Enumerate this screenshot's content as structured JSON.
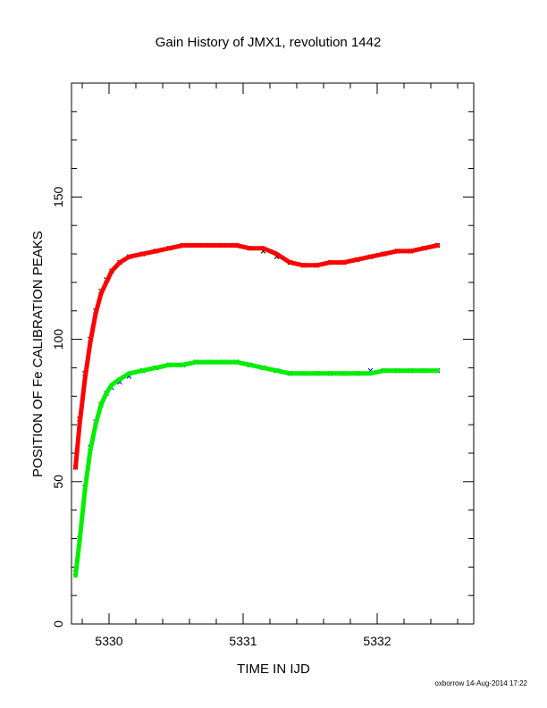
{
  "footer": "oxborrow 14-Aug-2014 17:22",
  "colors": {
    "background": "#ffffff",
    "axes": "#000000",
    "black_points": "#000000",
    "blue_points": "#0000ee",
    "red_fit": "#ff0000",
    "green_fit": "#00ee00"
  },
  "chart_data": {
    "type": "scatter",
    "title": "Gain History of JMX1, revolution 1442",
    "xlabel": "TIME IN IJD",
    "ylabel": "POSITION OF Fe CALIBRATION PEAKS",
    "xlim": [
      5329.72,
      5332.72
    ],
    "ylim": [
      0,
      190
    ],
    "xticks": [
      5330,
      5331,
      5332
    ],
    "xtick_labels": [
      "5330",
      "5331",
      "5332"
    ],
    "yticks": [
      0,
      50,
      100,
      150
    ],
    "ytick_labels": [
      "0",
      "50",
      "100",
      "150"
    ],
    "grid": false,
    "legend": "none",
    "series": [
      {
        "marker": "x",
        "color": "#000000",
        "x": [
          5329.75,
          5329.78,
          5329.82,
          5329.86,
          5329.9,
          5329.94,
          5329.98,
          5330.02,
          5330.08,
          5330.15,
          5330.25,
          5330.35,
          5330.45,
          5330.55,
          5330.65,
          5330.75,
          5330.85,
          5330.95,
          5331.05,
          5331.15,
          5331.25,
          5331.35,
          5331.45,
          5331.55,
          5331.65,
          5331.75,
          5331.85,
          5331.95,
          5332.05,
          5332.15,
          5332.25,
          5332.35,
          5332.45
        ],
        "y": [
          55,
          72,
          88,
          100,
          110,
          117,
          121,
          124,
          127,
          129,
          130,
          131,
          132,
          133,
          133,
          133,
          133,
          133,
          132,
          131,
          129,
          127,
          126,
          126,
          127,
          127,
          128,
          129,
          130,
          131,
          131,
          132,
          133
        ]
      },
      {
        "marker": "x",
        "color": "#0000ee",
        "x": [
          5329.75,
          5329.78,
          5329.82,
          5329.86,
          5329.9,
          5329.94,
          5329.98,
          5330.02,
          5330.08,
          5330.15,
          5330.25,
          5330.35,
          5330.45,
          5330.55,
          5330.65,
          5330.75,
          5330.85,
          5330.95,
          5331.05,
          5331.15,
          5331.25,
          5331.35,
          5331.45,
          5331.55,
          5331.65,
          5331.75,
          5331.85,
          5331.95,
          5332.05,
          5332.15,
          5332.25,
          5332.35,
          5332.45
        ],
        "y": [
          18,
          30,
          48,
          62,
          71,
          77,
          81,
          83,
          85,
          87,
          89,
          90,
          91,
          91,
          92,
          92,
          92,
          92,
          91,
          90,
          89,
          88,
          88,
          88,
          88,
          88,
          88,
          89,
          89,
          89,
          89,
          89,
          89
        ]
      },
      {
        "marker": "line",
        "color": "#ff0000",
        "x": [
          5329.75,
          5329.78,
          5329.82,
          5329.86,
          5329.9,
          5329.94,
          5329.98,
          5330.02,
          5330.08,
          5330.15,
          5330.25,
          5330.35,
          5330.45,
          5330.55,
          5330.65,
          5330.75,
          5330.85,
          5330.95,
          5331.05,
          5331.15,
          5331.25,
          5331.35,
          5331.45,
          5331.55,
          5331.65,
          5331.75,
          5331.85,
          5331.95,
          5332.05,
          5332.15,
          5332.25,
          5332.35,
          5332.45
        ],
        "y": [
          55,
          70,
          86,
          99,
          109,
          116,
          120,
          124,
          127,
          129,
          130,
          131,
          132,
          133,
          133,
          133,
          133,
          133,
          132,
          132,
          130,
          127,
          126,
          126,
          127,
          127,
          128,
          129,
          130,
          131,
          131,
          132,
          133
        ]
      },
      {
        "marker": "line",
        "color": "#00ee00",
        "x": [
          5329.75,
          5329.78,
          5329.82,
          5329.86,
          5329.9,
          5329.94,
          5329.98,
          5330.02,
          5330.08,
          5330.15,
          5330.25,
          5330.35,
          5330.45,
          5330.55,
          5330.65,
          5330.75,
          5330.85,
          5330.95,
          5331.05,
          5331.15,
          5331.25,
          5331.35,
          5331.45,
          5331.55,
          5331.65,
          5331.75,
          5331.85,
          5331.95,
          5332.05,
          5332.15,
          5332.25,
          5332.35,
          5332.45
        ],
        "y": [
          17,
          29,
          47,
          61,
          70,
          77,
          81,
          84,
          86,
          88,
          89,
          90,
          91,
          91,
          92,
          92,
          92,
          92,
          91,
          90,
          89,
          88,
          88,
          88,
          88,
          88,
          88,
          88,
          89,
          89,
          89,
          89,
          89
        ]
      }
    ]
  }
}
